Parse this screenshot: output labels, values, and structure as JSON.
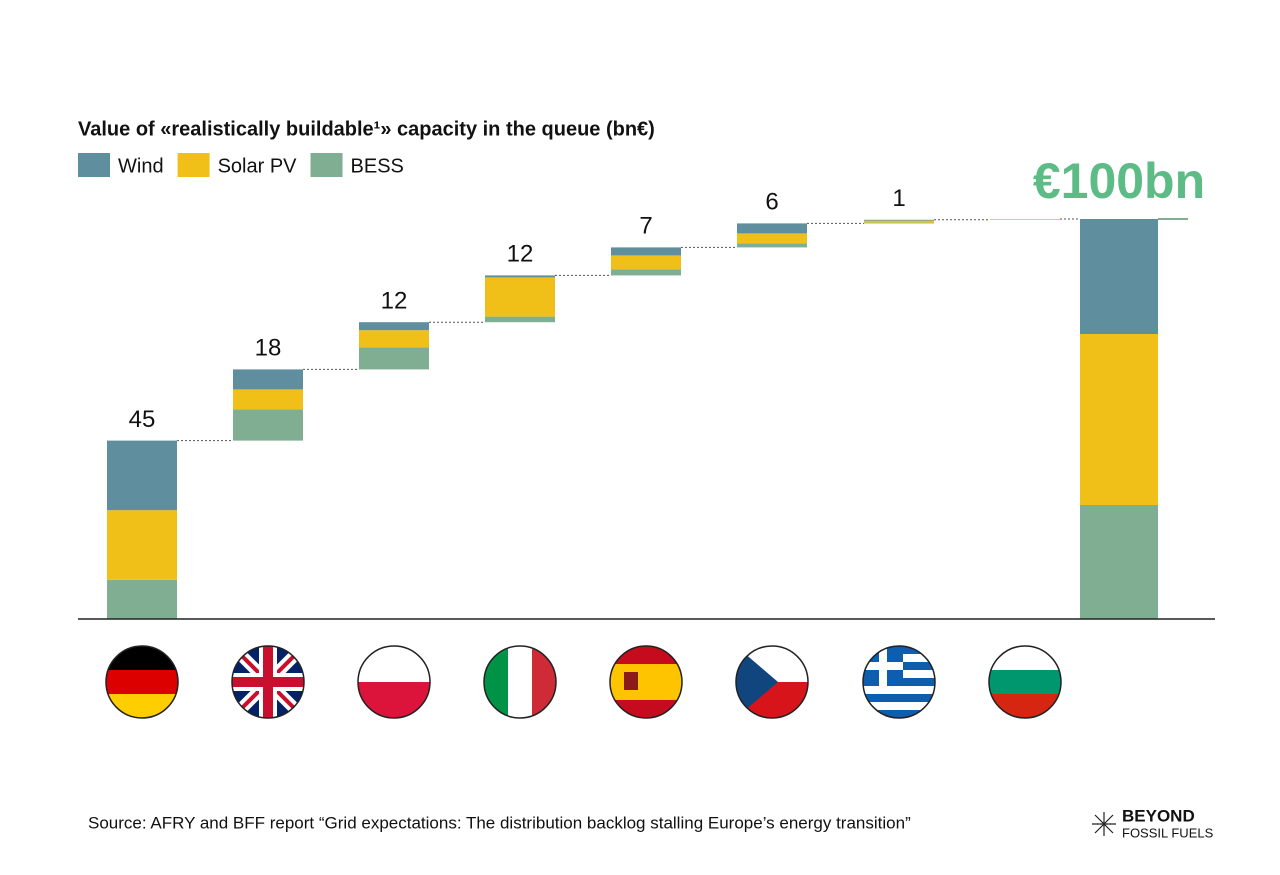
{
  "chart_data": {
    "type": "waterfall",
    "title": "Value of «realistically buildable¹» capacity in the queue (bn€)",
    "categories": [
      null,
      null,
      null,
      null,
      null,
      null,
      null,
      null,
      null
    ],
    "series": [
      {
        "name": "Wind",
        "color": "#5f8f9f",
        "values": [
          17.4,
          5,
          2,
          0.5,
          2,
          2.5,
          0.2,
          0,
          28.75
        ]
      },
      {
        "name": "Solar PV",
        "color": "#f0c019",
        "values": [
          17.4,
          5,
          4.3,
          9.8,
          3.5,
          2.5,
          0.5,
          0.2,
          42.75
        ]
      },
      {
        "name": "BESS",
        "color": "#7fae92",
        "values": [
          9.8,
          7.8,
          5.5,
          1.4,
          1.5,
          1,
          0.2,
          0,
          28.5
        ]
      }
    ],
    "totals": [
      45,
      18,
      12,
      12,
      7,
      6,
      1,
      null,
      100
    ],
    "total_value_labels": [
      null,
      null,
      null,
      null,
      null,
      null,
      null,
      null,
      "€100bn"
    ],
    "ylim": [
      0,
      100
    ],
    "source": "Source: AFRY and BFF report “Grid expectations: The distribution backlog stalling Europe’s energy transition”",
    "logo": {
      "line1": "BEYOND",
      "line2": "FOSSIL FUELS"
    }
  }
}
